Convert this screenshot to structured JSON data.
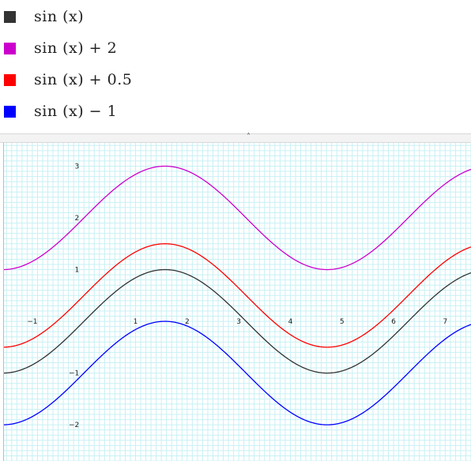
{
  "legend": {
    "items": [
      {
        "label": "sin (x)",
        "color": "#333333"
      },
      {
        "label": "sin (x)  + 2",
        "color": "#cc00cc"
      },
      {
        "label": "sin (x)  + 0.5",
        "color": "#ff0000"
      },
      {
        "label": "sin (x)  − 1",
        "color": "#0000ff"
      }
    ]
  },
  "divider": {
    "handle_icon": "chevron-up-icon",
    "handle_glyph": "˄"
  },
  "chart_data": {
    "type": "line",
    "xlim": [
      -1.55,
      7.5
    ],
    "ylim": [
      -2.7,
      3.45
    ],
    "x_ticks": [
      -1,
      1,
      2,
      3,
      4,
      5,
      6,
      7
    ],
    "x_tick_labels": [
      "−1",
      "1",
      "2",
      "3",
      "4",
      "5",
      "6",
      "7"
    ],
    "y_ticks": [
      3,
      2,
      1,
      -1,
      -2
    ],
    "y_tick_labels": [
      "3",
      "2",
      "1",
      "−1",
      "−2"
    ],
    "grid": true,
    "grid_color": "#c8f0f4",
    "series": [
      {
        "name": "sin (x)",
        "expression": "sin(x)",
        "offset": 0,
        "color": "#333333"
      },
      {
        "name": "sin (x)  + 2",
        "expression": "sin(x) + 2",
        "offset": 2,
        "color": "#cc00cc"
      },
      {
        "name": "sin (x)  + 0.5",
        "expression": "sin(x) + 0.5",
        "offset": 0.5,
        "color": "#ff0000"
      },
      {
        "name": "sin (x)  − 1",
        "expression": "sin(x) − 1",
        "offset": -1,
        "color": "#0000ff"
      }
    ]
  }
}
